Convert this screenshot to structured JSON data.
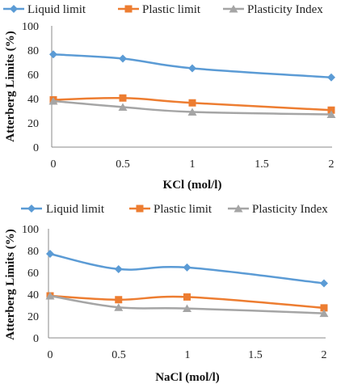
{
  "chart_data": [
    {
      "type": "line",
      "x": [
        0,
        0.5,
        1,
        2
      ],
      "xlim": [
        0,
        2
      ],
      "xticks": [
        "0",
        "0.5",
        "1",
        "1.5",
        "2"
      ],
      "ylim": [
        0,
        100
      ],
      "yticks": [
        "0",
        "20",
        "40",
        "60",
        "80",
        "100"
      ],
      "xlabel": "KCl (mol/l)",
      "ylabel": "Atterberg Limits (%)",
      "legend_position": "top",
      "grid": false,
      "series": [
        {
          "name": "Liquid limit",
          "color": "#5B9BD5",
          "marker": "diamond",
          "values": [
            76.5,
            73,
            65,
            57.5
          ]
        },
        {
          "name": "Plastic limit",
          "color": "#ED7D31",
          "marker": "square",
          "values": [
            39,
            40.5,
            36.5,
            30.5
          ]
        },
        {
          "name": "Plasticity Index",
          "color": "#A5A5A5",
          "marker": "triangle",
          "values": [
            38,
            33,
            29,
            27
          ]
        }
      ]
    },
    {
      "type": "line",
      "x": [
        0,
        0.5,
        1,
        2
      ],
      "xlim": [
        0,
        2
      ],
      "xticks": [
        "0",
        "0.5",
        "1",
        "1.5",
        "2"
      ],
      "ylim": [
        0,
        100
      ],
      "yticks": [
        "0",
        "20",
        "40",
        "60",
        "80",
        "100"
      ],
      "xlabel": "NaCl (mol/l)",
      "ylabel": "Atterberg Limits (%)",
      "legend_position": "top",
      "grid": false,
      "series": [
        {
          "name": "Liquid limit",
          "color": "#5B9BD5",
          "marker": "diamond",
          "values": [
            77,
            63,
            64.5,
            50
          ]
        },
        {
          "name": "Plastic limit",
          "color": "#ED7D31",
          "marker": "square",
          "values": [
            38.5,
            35,
            37.5,
            27.5
          ]
        },
        {
          "name": "Plasticity Index",
          "color": "#A5A5A5",
          "marker": "triangle",
          "values": [
            38.5,
            28,
            27,
            22.5
          ]
        }
      ]
    }
  ]
}
